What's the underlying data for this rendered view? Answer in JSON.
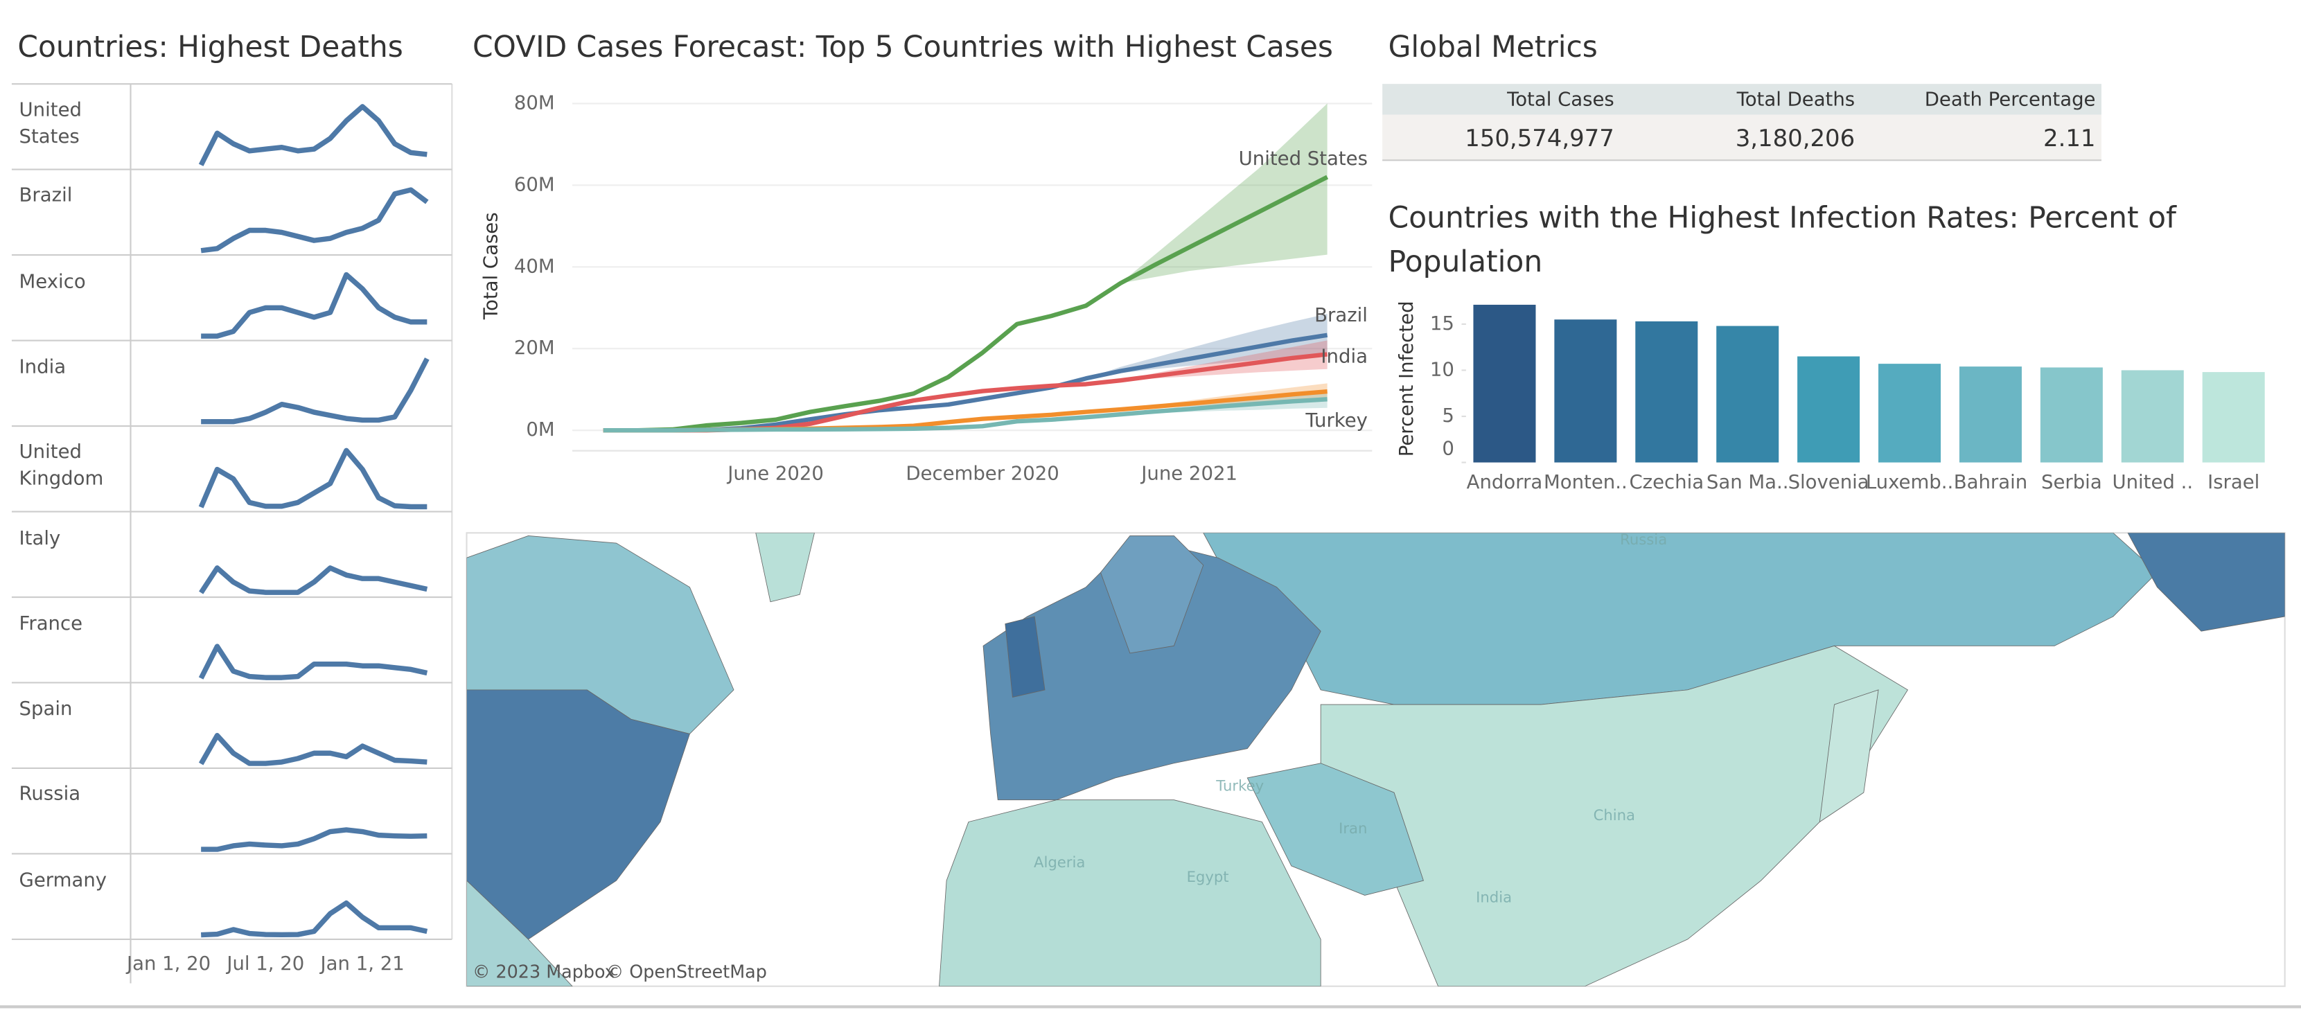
{
  "chart_data": [
    {
      "type": "sparklines",
      "title": "Countries: Highest Deaths",
      "xlim": [
        -2,
        17
      ],
      "xticks": [
        {
          "value": 0,
          "label": "Jan 1, 20"
        },
        {
          "value": 6,
          "label": "Jul 1, 20"
        },
        {
          "value": 12,
          "label": "Jan 1, 21"
        }
      ],
      "x": [
        2,
        3,
        4,
        5,
        6,
        7,
        8,
        9,
        10,
        11,
        12,
        13,
        14,
        15,
        16
      ],
      "series": [
        {
          "name": "United States",
          "color": "#4e79a7",
          "ylim": [
            0,
            4000
          ],
          "values": [
            0,
            1800,
            1200,
            800,
            900,
            1000,
            800,
            900,
            1500,
            2500,
            3300,
            2500,
            1200,
            700,
            600
          ]
        },
        {
          "name": "Brazil",
          "color": "#4e79a7",
          "ylim": [
            0,
            3500
          ],
          "values": [
            0,
            100,
            600,
            1000,
            1000,
            900,
            700,
            500,
            600,
            900,
            1100,
            1500,
            2800,
            3000,
            2400
          ]
        },
        {
          "name": "Mexico",
          "color": "#4e79a7",
          "ylim": [
            0,
            1500
          ],
          "values": [
            0,
            0,
            100,
            500,
            600,
            600,
            500,
            400,
            500,
            1300,
            1000,
            600,
            400,
            300,
            300
          ]
        },
        {
          "name": "India",
          "color": "#4e79a7",
          "ylim": [
            0,
            4500
          ],
          "values": [
            0,
            0,
            0,
            200,
            600,
            1100,
            900,
            600,
            400,
            200,
            100,
            100,
            300,
            2000,
            4000
          ]
        },
        {
          "name": "United Kingdom",
          "color": "#4e79a7",
          "ylim": [
            0,
            1500
          ],
          "values": [
            0,
            800,
            600,
            100,
            20,
            20,
            100,
            300,
            500,
            1200,
            800,
            200,
            30,
            10,
            10
          ]
        },
        {
          "name": "Italy",
          "color": "#4e79a7",
          "ylim": [
            0,
            2000
          ],
          "values": [
            0,
            700,
            300,
            50,
            10,
            10,
            10,
            300,
            700,
            500,
            400,
            400,
            300,
            200,
            100
          ]
        },
        {
          "name": "France",
          "color": "#4e79a7",
          "ylim": [
            0,
            2000
          ],
          "values": [
            0,
            900,
            200,
            50,
            20,
            20,
            50,
            400,
            400,
            400,
            350,
            350,
            300,
            250,
            150
          ]
        },
        {
          "name": "Spain",
          "color": "#4e79a7",
          "ylim": [
            0,
            2000
          ],
          "values": [
            0,
            800,
            300,
            10,
            10,
            50,
            150,
            300,
            300,
            200,
            500,
            300,
            100,
            80,
            50
          ]
        },
        {
          "name": "Russia",
          "color": "#4e79a7",
          "ylim": [
            0,
            2000
          ],
          "values": [
            0,
            0,
            100,
            150,
            120,
            100,
            150,
            300,
            500,
            550,
            500,
            400,
            380,
            370,
            380
          ]
        },
        {
          "name": "Germany",
          "color": "#4e79a7",
          "ylim": [
            0,
            2000
          ],
          "values": [
            0,
            20,
            150,
            40,
            10,
            5,
            10,
            100,
            600,
            900,
            500,
            200,
            200,
            200,
            100
          ]
        }
      ]
    },
    {
      "type": "line",
      "title": "COVID Cases Forecast: Top 5 Countries with Highest Cases",
      "y_label": "Total Cases",
      "xlim": [
        -0.9,
        22.3
      ],
      "xticks": [
        {
          "value": 5,
          "label": "June 2020"
        },
        {
          "value": 11,
          "label": "December 2020"
        },
        {
          "value": 17,
          "label": "June 2021"
        }
      ],
      "ylim": [
        -5,
        83
      ],
      "yticks": [
        {
          "value": 0,
          "label": "0M"
        },
        {
          "value": 20,
          "label": "20M"
        },
        {
          "value": 40,
          "label": "40M"
        },
        {
          "value": 60,
          "label": "60M"
        },
        {
          "value": 80,
          "label": "80M"
        }
      ],
      "grid": true,
      "x": [
        0,
        1,
        2,
        3,
        4,
        5,
        6,
        7,
        8,
        9,
        10,
        11,
        12,
        13,
        14,
        15,
        16,
        17,
        18,
        19,
        20,
        21
      ],
      "series": [
        {
          "name": "United States",
          "color": "#59a14f",
          "values": [
            0,
            0,
            0.2,
            1.2,
            1.8,
            2.6,
            4.5,
            5.9,
            7.2,
            9,
            13,
            19,
            26,
            28,
            30.5,
            36,
            40.5,
            44.8,
            49.1,
            53.4,
            57.7,
            62
          ],
          "lower": [
            null,
            null,
            null,
            null,
            null,
            null,
            null,
            null,
            null,
            null,
            null,
            null,
            null,
            null,
            null,
            36,
            37.5,
            39,
            40,
            41,
            42,
            43
          ],
          "upper": [
            null,
            null,
            null,
            null,
            null,
            null,
            null,
            null,
            null,
            null,
            null,
            null,
            null,
            null,
            null,
            36,
            43,
            50,
            57,
            64,
            72,
            80
          ]
        },
        {
          "name": "Brazil",
          "color": "#4e79a7",
          "values": [
            0,
            0,
            0,
            0.1,
            0.5,
            1.4,
            2.7,
            3.9,
            4.9,
            5.6,
            6.3,
            7.7,
            9.1,
            10.5,
            12.7,
            14.5,
            16,
            17.5,
            19,
            20.5,
            22,
            23.3
          ],
          "lower": [
            null,
            null,
            null,
            null,
            null,
            null,
            null,
            null,
            null,
            null,
            null,
            null,
            null,
            null,
            12.7,
            14,
            15,
            15.8,
            16.5,
            17.2,
            17.9,
            18.5
          ],
          "upper": [
            null,
            null,
            null,
            null,
            null,
            null,
            null,
            null,
            null,
            null,
            null,
            null,
            null,
            null,
            12.7,
            15.5,
            17.8,
            20.1,
            22.4,
            24.6,
            26.6,
            28.5
          ]
        },
        {
          "name": "India",
          "color": "#e15759",
          "values": [
            0,
            0,
            0,
            0,
            0.2,
            0.6,
            1.6,
            3.5,
            5.5,
            7.3,
            8.5,
            9.6,
            10.3,
            10.9,
            11.3,
            12.2,
            13.3,
            14.4,
            15.5,
            16.6,
            17.7,
            18.6
          ],
          "lower": [
            null,
            null,
            null,
            null,
            null,
            null,
            null,
            null,
            null,
            null,
            null,
            null,
            null,
            null,
            null,
            12.2,
            12.7,
            13.2,
            13.7,
            14.2,
            14.6,
            15
          ],
          "upper": [
            null,
            null,
            null,
            null,
            null,
            null,
            null,
            null,
            null,
            null,
            null,
            null,
            null,
            null,
            null,
            12.2,
            14,
            15.6,
            17.2,
            18.8,
            20.4,
            22
          ]
        },
        {
          "name": null,
          "color": "#f28e2b",
          "values": [
            0,
            0,
            0,
            0.1,
            0.2,
            0.3,
            0.4,
            0.6,
            0.8,
            1.1,
            2.0,
            2.8,
            3.3,
            3.8,
            4.5,
            5.1,
            5.8,
            6.5,
            7.3,
            8.0,
            8.8,
            9.5
          ],
          "lower": [
            null,
            null,
            null,
            null,
            null,
            null,
            null,
            null,
            null,
            null,
            null,
            null,
            null,
            null,
            null,
            5.1,
            5.5,
            5.9,
            6.3,
            6.7,
            7.1,
            7.5
          ],
          "upper": [
            null,
            null,
            null,
            null,
            null,
            null,
            null,
            null,
            null,
            null,
            null,
            null,
            null,
            null,
            null,
            5.1,
            6.2,
            7.3,
            8.4,
            9.5,
            10.5,
            11.5
          ]
        },
        {
          "name": "Turkey",
          "color": "#76b7b2",
          "values": [
            0,
            0,
            0,
            0.1,
            0.15,
            0.2,
            0.2,
            0.25,
            0.3,
            0.4,
            0.6,
            1.0,
            2.2,
            2.6,
            3.2,
            3.9,
            4.6,
            5.2,
            5.9,
            6.5,
            7.1,
            7.6
          ],
          "lower": [
            null,
            null,
            null,
            null,
            null,
            null,
            null,
            null,
            null,
            null,
            null,
            null,
            null,
            null,
            null,
            3.9,
            4.2,
            4.5,
            4.8,
            5.0,
            5.3,
            5.5
          ],
          "upper": [
            null,
            null,
            null,
            null,
            null,
            null,
            null,
            null,
            null,
            null,
            null,
            null,
            null,
            null,
            null,
            3.9,
            5.0,
            6.0,
            7.0,
            8.0,
            9.0,
            10
          ]
        }
      ]
    },
    {
      "type": "bar",
      "title": "Countries with the Highest Infection Rates: Percent of Population",
      "y_label": "Percent Infected",
      "categories": [
        "Andorra",
        "Monten..",
        "Czechia",
        "San Ma..",
        "Slovenia",
        "Luxemb..",
        "Bahrain",
        "Serbia",
        "United ..",
        "Israel"
      ],
      "values": [
        17.1,
        15.5,
        15.3,
        14.8,
        11.5,
        10.7,
        10.4,
        10.3,
        10.0,
        9.8
      ],
      "colors": [
        "#2c5886",
        "#2f6894",
        "#32779f",
        "#3686a8",
        "#3f9cb5",
        "#55abbf",
        "#6bb6c4",
        "#86c6cb",
        "#a2d6d3",
        "#bde6dc"
      ],
      "ylim": [
        0,
        17.5
      ],
      "yticks": [
        0,
        5,
        10,
        15
      ]
    }
  ],
  "metrics": {
    "title": "Global Metrics",
    "columns": [
      "Total Cases",
      "Total Deaths",
      "Death Percentage"
    ],
    "rows": [
      [
        "150,574,977",
        "3,180,206",
        "2.11"
      ]
    ]
  },
  "map": {
    "attribution": [
      "© 2023 Mapbox",
      "© OpenStreetMap"
    ],
    "labels": [
      "Russia",
      "Turkey",
      "Iran",
      "China",
      "India",
      "Egypt",
      "Algeria"
    ]
  }
}
